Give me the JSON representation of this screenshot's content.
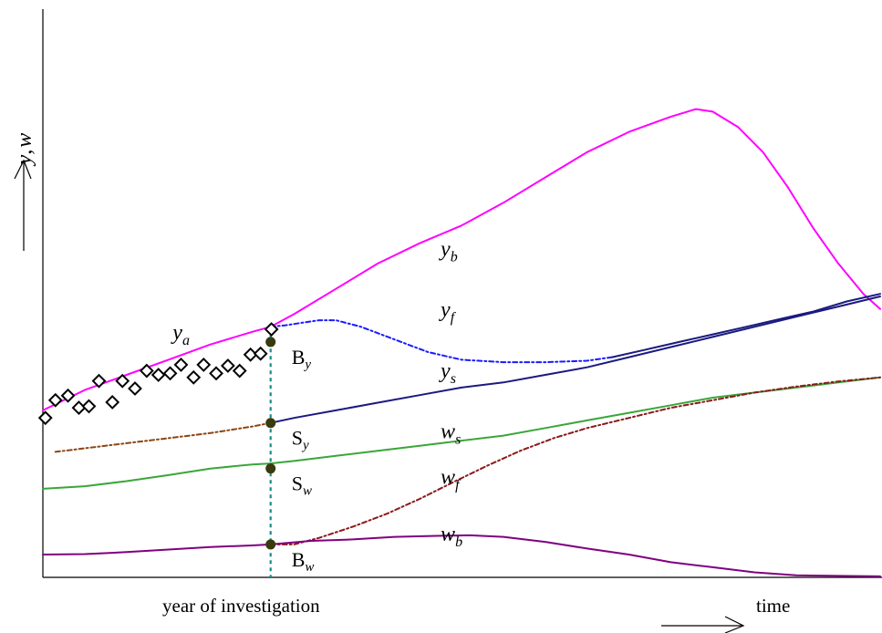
{
  "chart_data": {
    "type": "line",
    "axes": {
      "ylabel_main": "y",
      "ylabel_sep": ",",
      "ylabel_tail": "w",
      "xlabel": "time",
      "year_label": "year of investigation",
      "xlim": [
        0,
        100
      ],
      "ylim": [
        0,
        100
      ],
      "ticks": "none",
      "grid": false
    },
    "year_of_investigation_x": 27.2,
    "series": [
      {
        "name": "y",
        "sub": "b",
        "color": "#ff00ff",
        "style": "solid",
        "label_at": [
          47.5,
          63.5
        ],
        "points": [
          [
            0,
            33
          ],
          [
            5,
            37
          ],
          [
            10,
            40
          ],
          [
            15,
            43
          ],
          [
            20,
            46
          ],
          [
            25,
            48.5
          ],
          [
            27.2,
            49.5
          ],
          [
            30,
            52
          ],
          [
            35,
            57
          ],
          [
            40,
            62
          ],
          [
            45,
            66
          ],
          [
            50,
            69.5
          ],
          [
            55,
            74
          ],
          [
            60,
            79
          ],
          [
            65,
            84
          ],
          [
            70,
            88
          ],
          [
            75,
            91
          ],
          [
            78,
            92.5
          ],
          [
            80,
            92
          ],
          [
            83,
            89
          ],
          [
            86,
            84
          ],
          [
            89,
            77
          ],
          [
            92,
            69
          ],
          [
            95,
            62
          ],
          [
            98,
            56
          ],
          [
            100,
            53
          ]
        ]
      },
      {
        "name": "y",
        "sub": "f",
        "color": "#1a1aff",
        "style": "dashed",
        "label_at": [
          47.5,
          51.5
        ],
        "points": [
          [
            27.2,
            49.5
          ],
          [
            29,
            49.8
          ],
          [
            31,
            50.3
          ],
          [
            33,
            50.8
          ],
          [
            35,
            50.8
          ],
          [
            38,
            49.5
          ],
          [
            42,
            47
          ],
          [
            46,
            44.5
          ],
          [
            50,
            43
          ],
          [
            55,
            42.5
          ],
          [
            60,
            42.5
          ],
          [
            65,
            42.8
          ],
          [
            68,
            43.5
          ]
        ]
      },
      {
        "name": "y",
        "sub": "f",
        "color": "#1a1a80",
        "style": "solid",
        "hide_label": true,
        "points": [
          [
            68,
            43.5
          ],
          [
            72,
            45
          ],
          [
            76,
            46.5
          ],
          [
            80,
            48
          ],
          [
            84,
            49.5
          ],
          [
            88,
            51
          ],
          [
            92,
            52.5
          ],
          [
            96,
            54.5
          ],
          [
            100,
            56
          ]
        ]
      },
      {
        "name": "y",
        "sub": "s",
        "color": "#1a1a80",
        "style": "solid",
        "label_at": [
          47.5,
          39.5
        ],
        "points": [
          [
            27.2,
            30.5
          ],
          [
            30,
            31.5
          ],
          [
            35,
            33
          ],
          [
            40,
            34.5
          ],
          [
            45,
            36
          ],
          [
            50,
            37.5
          ],
          [
            55,
            38.5
          ],
          [
            60,
            40
          ],
          [
            65,
            41.5
          ],
          [
            70,
            43.5
          ],
          [
            75,
            45.5
          ],
          [
            80,
            47.5
          ],
          [
            85,
            49.5
          ],
          [
            90,
            51.5
          ],
          [
            95,
            53.5
          ],
          [
            100,
            55.5
          ]
        ]
      },
      {
        "name": "y",
        "sub": "s",
        "color": "#8b4513",
        "style": "dashed",
        "hide_label": true,
        "points": [
          [
            1.5,
            24.8
          ],
          [
            5,
            25.5
          ],
          [
            10,
            26.5
          ],
          [
            15,
            27.5
          ],
          [
            20,
            28.5
          ],
          [
            25,
            29.8
          ],
          [
            27.2,
            30.5
          ]
        ]
      },
      {
        "name": "w",
        "sub": "s",
        "color": "#3aa63a",
        "style": "solid",
        "label_at": [
          47.5,
          27.5
        ],
        "points": [
          [
            0,
            17.5
          ],
          [
            5,
            18
          ],
          [
            10,
            19
          ],
          [
            15,
            20.2
          ],
          [
            20,
            21.5
          ],
          [
            25,
            22.3
          ],
          [
            27.2,
            22.5
          ],
          [
            30,
            23
          ],
          [
            35,
            24
          ],
          [
            40,
            25
          ],
          [
            45,
            26
          ],
          [
            50,
            27
          ],
          [
            55,
            28
          ],
          [
            60,
            29.5
          ],
          [
            65,
            31
          ],
          [
            70,
            32.5
          ],
          [
            75,
            34
          ],
          [
            80,
            35.5
          ],
          [
            85,
            36.5
          ],
          [
            90,
            37.5
          ],
          [
            95,
            38.5
          ],
          [
            100,
            39.5
          ]
        ]
      },
      {
        "name": "w",
        "sub": "f",
        "color": "#8b1a1a",
        "style": "dashed",
        "label_at": [
          47.5,
          18.5
        ],
        "points": [
          [
            27.2,
            6.5
          ],
          [
            30,
            6.5
          ],
          [
            33,
            7.8
          ],
          [
            37,
            10
          ],
          [
            41,
            12.5
          ],
          [
            45,
            15.5
          ],
          [
            49,
            18.8
          ],
          [
            53,
            22
          ],
          [
            57,
            25
          ],
          [
            61,
            27.5
          ],
          [
            65,
            29.5
          ],
          [
            70,
            31.5
          ],
          [
            75,
            33.5
          ],
          [
            80,
            35
          ],
          [
            85,
            36.5
          ],
          [
            90,
            37.7
          ],
          [
            95,
            38.7
          ],
          [
            100,
            39.5
          ]
        ]
      },
      {
        "name": "w",
        "sub": "b",
        "color": "#800080",
        "style": "solid",
        "label_at": [
          47.5,
          7.2
        ],
        "points": [
          [
            0,
            4.5
          ],
          [
            5,
            4.6
          ],
          [
            10,
            5
          ],
          [
            15,
            5.5
          ],
          [
            20,
            6
          ],
          [
            25,
            6.3
          ],
          [
            27.2,
            6.5
          ],
          [
            32,
            7.2
          ],
          [
            37,
            7.5
          ],
          [
            42,
            8
          ],
          [
            47,
            8.2
          ],
          [
            51,
            8.3
          ],
          [
            55,
            8
          ],
          [
            60,
            7
          ],
          [
            65,
            5.7
          ],
          [
            70,
            4.5
          ],
          [
            75,
            3
          ],
          [
            80,
            2
          ],
          [
            85,
            1
          ],
          [
            90,
            0.4
          ],
          [
            100,
            0.2
          ]
        ]
      }
    ],
    "observations": {
      "name": "y",
      "sub": "a",
      "marker": "diamond",
      "label_at": [
        15.5,
        47
      ],
      "points": [
        [
          0.3,
          31.5
        ],
        [
          1.5,
          35
        ],
        [
          3,
          35.9
        ],
        [
          4.3,
          33.5
        ],
        [
          5.5,
          33.8
        ],
        [
          6.7,
          38.8
        ],
        [
          8.3,
          34.6
        ],
        [
          9.5,
          38.8
        ],
        [
          11,
          37.3
        ],
        [
          12.4,
          40.8
        ],
        [
          13.8,
          40
        ],
        [
          15.2,
          40.3
        ],
        [
          16.5,
          42
        ],
        [
          18,
          39.5
        ],
        [
          19.2,
          42
        ],
        [
          20.7,
          40.3
        ],
        [
          22.1,
          41.8
        ],
        [
          23.5,
          40.8
        ],
        [
          24.8,
          44
        ],
        [
          26,
          44.2
        ],
        [
          27.3,
          49
        ]
      ]
    },
    "points_labels": [
      {
        "id": "By",
        "main": "B",
        "sub": "y",
        "value": 46.5
      },
      {
        "id": "Sy",
        "main": "S",
        "sub": "y",
        "value": 30.5
      },
      {
        "id": "Sw",
        "main": "S",
        "sub": "w",
        "value": 21.5
      },
      {
        "id": "Bw",
        "main": "B",
        "sub": "w",
        "value": 6.5
      }
    ]
  }
}
